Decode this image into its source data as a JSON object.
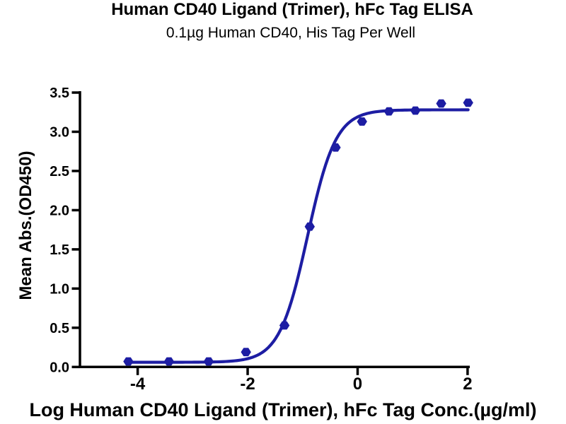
{
  "chart_data": {
    "type": "scatter",
    "title": "Human CD40 Ligand (Trimer), hFc Tag ELISA",
    "subtitle": "0.1µg Human CD40, His Tag Per Well",
    "xlabel": "Log Human CD40 Ligand (Trimer), hFc Tag Conc.(µg/ml)",
    "ylabel": "Mean Abs.(OD450)",
    "axes": {
      "xlim": [
        -5.05,
        2.04
      ],
      "ylim": [
        0,
        3.5
      ],
      "x_ticks": [
        -4,
        -2,
        0,
        2
      ],
      "x_tick_labels": [
        "-4",
        "-2",
        "0",
        "2"
      ],
      "y_ticks": [
        0,
        0.5,
        1,
        1.5,
        2,
        2.5,
        3,
        3.5
      ],
      "y_tick_labels": [
        "0.0",
        "0.5",
        "1.0",
        "1.5",
        "2.0",
        "2.5",
        "3.0",
        "3.5"
      ],
      "grid": false
    },
    "series": [
      {
        "name": "Human CD40 Ligand (Trimer), hFc Tag",
        "marker": "hexagon",
        "color": "#1d1da3",
        "points": [
          {
            "log_conc": -4.17,
            "od450": 0.07
          },
          {
            "log_conc": -3.43,
            "od450": 0.07
          },
          {
            "log_conc": -2.71,
            "od450": 0.07
          },
          {
            "log_conc": -2.03,
            "od450": 0.19
          },
          {
            "log_conc": -1.33,
            "od450": 0.53
          },
          {
            "log_conc": -0.87,
            "od450": 1.79
          },
          {
            "log_conc": -0.4,
            "od450": 2.8
          },
          {
            "log_conc": 0.08,
            "od450": 3.13
          },
          {
            "log_conc": 0.57,
            "od450": 3.26
          },
          {
            "log_conc": 1.05,
            "od450": 3.27
          },
          {
            "log_conc": 1.52,
            "od450": 3.36
          },
          {
            "log_conc": 2.01,
            "od450": 3.37
          }
        ]
      }
    ],
    "fit_curve": {
      "model": "4PL",
      "bottom": 0.06,
      "top": 3.28,
      "log_ec50": -0.91,
      "hill_slope": 1.69,
      "x_start": -4.17,
      "x_end": 2.01,
      "color": "#1d1da3"
    },
    "legend": null
  },
  "colors": {
    "accent": "#1d1da3",
    "axis": "#000000",
    "background": "#ffffff"
  }
}
